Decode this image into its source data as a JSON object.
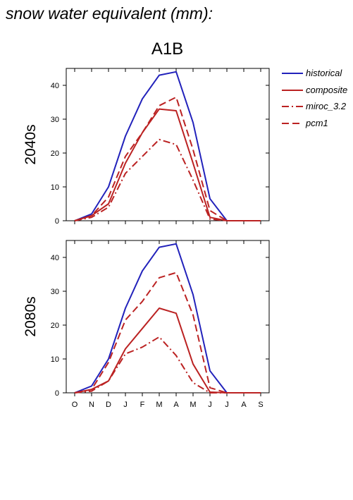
{
  "header": {
    "title": "snow water equivalent (mm):",
    "scenario": "A1B"
  },
  "legend": {
    "items": [
      {
        "label": "historical",
        "color": "#2222bb",
        "dash": "solid"
      },
      {
        "label": "composite",
        "color": "#bb2222",
        "dash": "solid"
      },
      {
        "label": "miroc_3.2",
        "color": "#bb2222",
        "dash": "dashdot"
      },
      {
        "label": "pcm1",
        "color": "#bb2222",
        "dash": "dash"
      }
    ]
  },
  "chart_data": [
    {
      "type": "line",
      "row_label": "2040s",
      "x": [
        "O",
        "N",
        "D",
        "J",
        "F",
        "M",
        "A",
        "M",
        "J",
        "J",
        "A",
        "S"
      ],
      "ylim": [
        0,
        45
      ],
      "yticks": [
        0,
        10,
        20,
        30,
        40
      ],
      "series": [
        {
          "name": "historical",
          "color": "#2222bb",
          "dash": "solid",
          "values": [
            0,
            2,
            10,
            25,
            36,
            43,
            44,
            29,
            6.5,
            0,
            0,
            0
          ]
        },
        {
          "name": "composite",
          "color": "#bb2222",
          "dash": "solid",
          "values": [
            0,
            1.5,
            5,
            17,
            26,
            33,
            32.5,
            17,
            1,
            0,
            0,
            0
          ]
        },
        {
          "name": "miroc_3.2",
          "color": "#bb2222",
          "dash": "dashdot",
          "values": [
            0,
            1,
            4,
            14,
            19,
            24,
            22.5,
            12,
            0.5,
            0,
            0,
            0
          ]
        },
        {
          "name": "pcm1",
          "color": "#bb2222",
          "dash": "dash",
          "values": [
            0,
            1.5,
            7,
            19,
            26,
            34,
            36.5,
            21,
            3,
            0,
            0,
            0
          ]
        }
      ]
    },
    {
      "type": "line",
      "row_label": "2080s",
      "x": [
        "O",
        "N",
        "D",
        "J",
        "F",
        "M",
        "A",
        "M",
        "J",
        "J",
        "A",
        "S"
      ],
      "ylim": [
        0,
        45
      ],
      "yticks": [
        0,
        10,
        20,
        30,
        40
      ],
      "series": [
        {
          "name": "historical",
          "color": "#2222bb",
          "dash": "solid",
          "values": [
            0,
            2,
            10,
            25,
            36,
            43,
            44,
            29,
            6.5,
            0,
            0,
            0
          ]
        },
        {
          "name": "composite",
          "color": "#bb2222",
          "dash": "solid",
          "values": [
            0,
            1,
            3.5,
            13,
            19,
            25,
            23.5,
            8.5,
            0.2,
            0,
            0,
            0
          ]
        },
        {
          "name": "miroc_3.2",
          "color": "#bb2222",
          "dash": "dashdot",
          "values": [
            0,
            0.5,
            3.5,
            11.5,
            13.5,
            16.5,
            11,
            3,
            0,
            0,
            0,
            0
          ]
        },
        {
          "name": "pcm1",
          "color": "#bb2222",
          "dash": "dash",
          "values": [
            0,
            1,
            9,
            21.5,
            27,
            34,
            35.5,
            23,
            1.5,
            0,
            0,
            0
          ]
        }
      ]
    }
  ]
}
